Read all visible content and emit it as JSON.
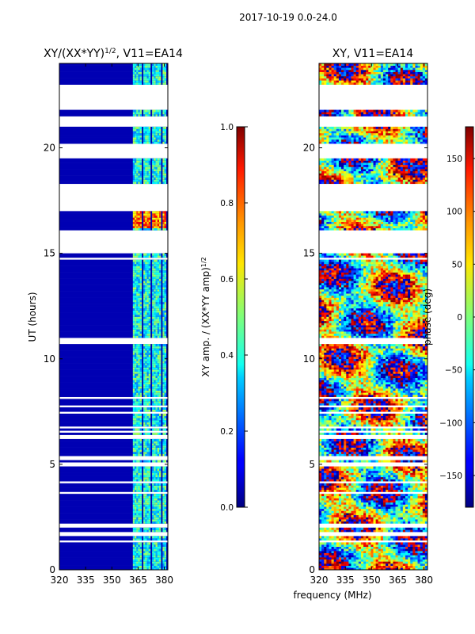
{
  "figure": {
    "suptitle": "2017-10-19 0.0-24.0",
    "xlabel": "frequency (MHz)"
  },
  "chart_data": [
    {
      "type": "heatmap",
      "title_main": "XY/(XX*YY)",
      "title_sup": "1/2",
      "title_tail": ", V11=EA14",
      "xlabel": "",
      "ylabel": "UT (hours)",
      "xlim": [
        320,
        382
      ],
      "ylim": [
        0,
        24
      ],
      "xticks": [
        320,
        335,
        350,
        365,
        380
      ],
      "yticks": [
        0,
        5,
        10,
        15,
        20
      ],
      "colormap": "jet",
      "colorbar": {
        "label_main": "XY amp. / (XX*YY amp)",
        "label_sup": "1/2",
        "range": [
          0.0,
          1.0
        ],
        "ticks": [
          0.0,
          0.2,
          0.4,
          0.6,
          0.8,
          1.0
        ],
        "tick_labels": [
          "0.0",
          "0.2",
          "0.4",
          "0.6",
          "0.8",
          "1.0"
        ]
      },
      "background_value": 0.05,
      "active_freq_bands_mhz": [
        [
          362,
          367
        ],
        [
          368.5,
          372
        ],
        [
          373,
          378
        ],
        [
          379,
          381
        ]
      ],
      "elevated_time_range_hours": [
        16.2,
        17.0
      ],
      "data_gaps_hours": [
        [
          19.5,
          20.1
        ],
        [
          17.0,
          18.3
        ],
        [
          15.0,
          16.1
        ],
        [
          21.0,
          21.5
        ],
        [
          22.0,
          22.9
        ],
        [
          10.8,
          11.0
        ],
        [
          6.5,
          6.6
        ],
        [
          5.2,
          5.4
        ],
        [
          1.6,
          1.8
        ]
      ]
    },
    {
      "type": "heatmap",
      "title_main": "XY, V11=EA14",
      "xlabel": "",
      "ylabel": "",
      "xlim": [
        320,
        382
      ],
      "ylim": [
        0,
        24
      ],
      "xticks": [
        320,
        335,
        350,
        365,
        380
      ],
      "yticks": [
        0,
        5,
        10,
        15,
        20
      ],
      "colormap": "jet",
      "colorbar": {
        "label_main": "phase (deg)",
        "range": [
          -180,
          180
        ],
        "ticks": [
          -150,
          -100,
          -50,
          0,
          50,
          100,
          150
        ],
        "tick_labels": [
          "−150",
          "−100",
          "−50",
          "0",
          "50",
          "100",
          "150"
        ]
      },
      "data_gaps_hours": [
        [
          19.5,
          20.1
        ],
        [
          17.0,
          18.3
        ],
        [
          15.0,
          16.1
        ],
        [
          21.0,
          21.5
        ],
        [
          22.0,
          22.9
        ],
        [
          10.8,
          11.0
        ],
        [
          6.5,
          6.6
        ],
        [
          5.2,
          5.4
        ],
        [
          1.6,
          1.8
        ]
      ]
    }
  ]
}
